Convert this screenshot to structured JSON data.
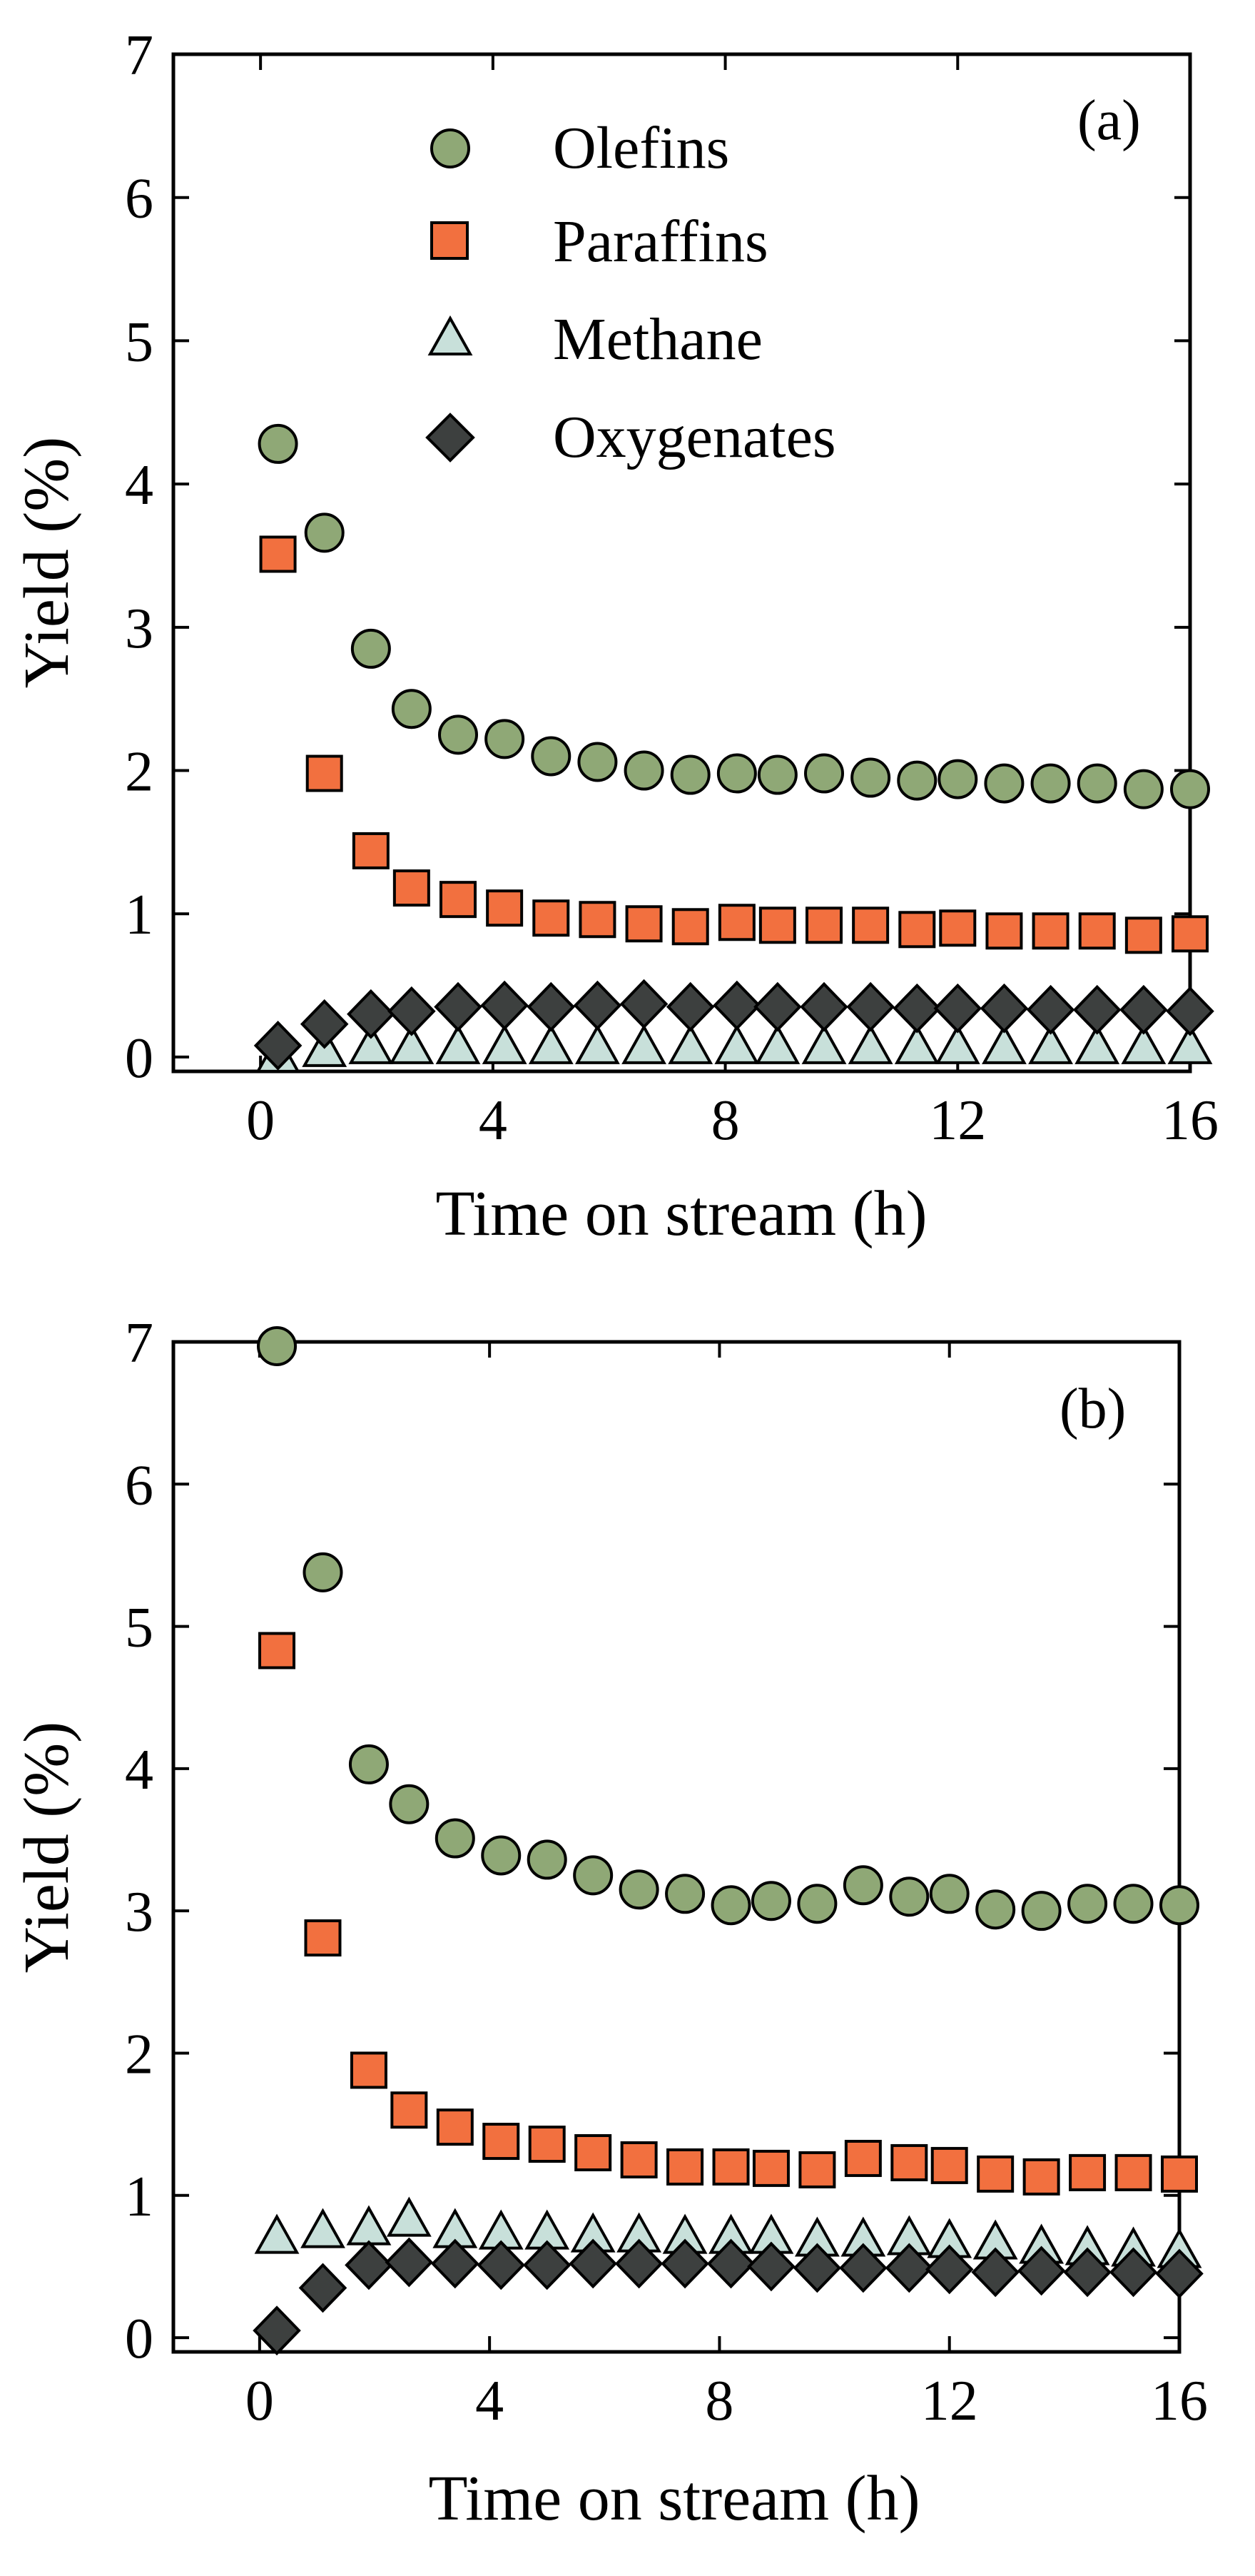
{
  "chart_data": [
    {
      "type": "scatter",
      "panel": "(a)",
      "xlabel": "Time on stream (h)",
      "ylabel": "Yield (%)",
      "xlim": [
        -1.5,
        16
      ],
      "ylim": [
        -0.1,
        7
      ],
      "xticks": [
        0,
        4,
        8,
        12,
        16
      ],
      "yticks": [
        0,
        1,
        2,
        3,
        4,
        5,
        6,
        7
      ],
      "legend_position": "top-left",
      "x": [
        0.3,
        1.1,
        1.9,
        2.6,
        3.4,
        4.2,
        5.0,
        5.8,
        6.6,
        7.4,
        8.2,
        8.9,
        9.7,
        10.5,
        11.3,
        12.0,
        12.8,
        13.6,
        14.4,
        15.2,
        16.0
      ],
      "series": [
        {
          "name": "Olefins",
          "marker": "circle",
          "color": "#8FA876",
          "values": [
            4.28,
            3.66,
            2.85,
            2.43,
            2.25,
            2.22,
            2.1,
            2.06,
            2.0,
            1.97,
            1.98,
            1.97,
            1.98,
            1.95,
            1.93,
            1.94,
            1.91,
            1.91,
            1.91,
            1.87,
            1.87
          ]
        },
        {
          "name": "Paraffins",
          "marker": "square",
          "color": "#F2703F",
          "values": [
            3.51,
            1.98,
            1.44,
            1.18,
            1.1,
            1.04,
            0.97,
            0.96,
            0.93,
            0.91,
            0.94,
            0.92,
            0.92,
            0.92,
            0.89,
            0.9,
            0.88,
            0.88,
            0.88,
            0.85,
            0.86
          ]
        },
        {
          "name": "Methane",
          "marker": "triangle",
          "color": "#C8E0DA",
          "values": [
            0.0,
            0.04,
            0.06,
            0.06,
            0.06,
            0.06,
            0.06,
            0.06,
            0.06,
            0.06,
            0.06,
            0.06,
            0.06,
            0.06,
            0.06,
            0.06,
            0.06,
            0.06,
            0.06,
            0.06,
            0.06
          ]
        },
        {
          "name": "Oxygenates",
          "marker": "diamond",
          "color": "#3D403F",
          "values": [
            0.08,
            0.23,
            0.3,
            0.32,
            0.35,
            0.36,
            0.35,
            0.36,
            0.37,
            0.35,
            0.36,
            0.35,
            0.35,
            0.35,
            0.34,
            0.34,
            0.34,
            0.33,
            0.33,
            0.33,
            0.32
          ]
        }
      ]
    },
    {
      "type": "scatter",
      "panel": "(b)",
      "xlabel": "Time on stream (h)",
      "ylabel": "Yield (%)",
      "xlim": [
        -1.5,
        16
      ],
      "ylim": [
        -0.1,
        7
      ],
      "xticks": [
        0,
        4,
        8,
        12,
        16
      ],
      "yticks": [
        0,
        1,
        2,
        3,
        4,
        5,
        6,
        7
      ],
      "x": [
        0.3,
        1.1,
        1.9,
        2.6,
        3.4,
        4.2,
        5.0,
        5.8,
        6.6,
        7.4,
        8.2,
        8.9,
        9.7,
        10.5,
        11.3,
        12.0,
        12.8,
        13.6,
        14.4,
        15.2,
        16.0
      ],
      "series": [
        {
          "name": "Olefins",
          "marker": "circle",
          "color": "#8FA876",
          "values": [
            6.97,
            5.38,
            4.03,
            3.75,
            3.51,
            3.39,
            3.36,
            3.25,
            3.15,
            3.12,
            3.04,
            3.07,
            3.05,
            3.18,
            3.1,
            3.12,
            3.01,
            3.0,
            3.05,
            3.05,
            3.04
          ]
        },
        {
          "name": "Paraffins",
          "marker": "square",
          "color": "#F2703F",
          "values": [
            4.83,
            2.81,
            1.88,
            1.6,
            1.48,
            1.38,
            1.36,
            1.3,
            1.25,
            1.2,
            1.2,
            1.19,
            1.18,
            1.26,
            1.23,
            1.21,
            1.15,
            1.13,
            1.16,
            1.16,
            1.15
          ]
        },
        {
          "name": "Methane",
          "marker": "triangle",
          "color": "#C8E0DA",
          "values": [
            0.7,
            0.74,
            0.76,
            0.82,
            0.74,
            0.73,
            0.73,
            0.71,
            0.71,
            0.7,
            0.7,
            0.7,
            0.68,
            0.68,
            0.69,
            0.67,
            0.66,
            0.63,
            0.62,
            0.61,
            0.6
          ]
        },
        {
          "name": "Oxygenates",
          "marker": "diamond",
          "color": "#3D403F",
          "values": [
            0.05,
            0.35,
            0.51,
            0.53,
            0.52,
            0.51,
            0.51,
            0.52,
            0.52,
            0.52,
            0.52,
            0.5,
            0.49,
            0.49,
            0.49,
            0.48,
            0.46,
            0.47,
            0.46,
            0.46,
            0.45
          ]
        }
      ]
    }
  ]
}
